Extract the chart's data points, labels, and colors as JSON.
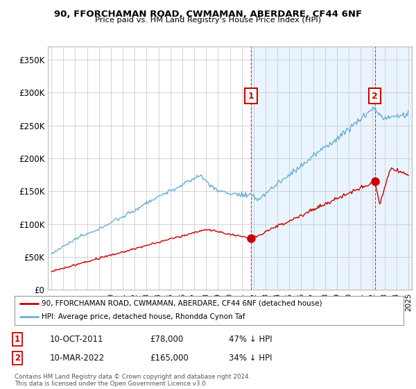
{
  "title": "90, FFORCHAMAN ROAD, CWMAMAN, ABERDARE, CF44 6NF",
  "subtitle": "Price paid vs. HM Land Registry's House Price Index (HPI)",
  "ylabel_ticks": [
    "£0",
    "£50K",
    "£100K",
    "£150K",
    "£200K",
    "£250K",
    "£300K",
    "£350K"
  ],
  "ytick_values": [
    0,
    50000,
    100000,
    150000,
    200000,
    250000,
    300000,
    350000
  ],
  "ylim": [
    0,
    370000
  ],
  "hpi_color": "#6baed6",
  "price_color": "#cc0000",
  "shade_color": "#ddeeff",
  "sale1_date_x": 2011.78,
  "sale1_price": 78000,
  "sale2_date_x": 2022.19,
  "sale2_price": 165000,
  "legend_line1": "90, FFORCHAMAN ROAD, CWMAMAN, ABERDARE, CF44 6NF (detached house)",
  "legend_line2": "HPI: Average price, detached house, Rhondda Cynon Taf",
  "table_row1": [
    "1",
    "10-OCT-2011",
    "£78,000",
    "47% ↓ HPI"
  ],
  "table_row2": [
    "2",
    "10-MAR-2022",
    "£165,000",
    "34% ↓ HPI"
  ],
  "footnote": "Contains HM Land Registry data © Crown copyright and database right 2024.\nThis data is licensed under the Open Government Licence v3.0.",
  "bg_color": "#ffffff",
  "grid_color": "#cccccc",
  "xmin": 1994.7,
  "xmax": 2025.3
}
